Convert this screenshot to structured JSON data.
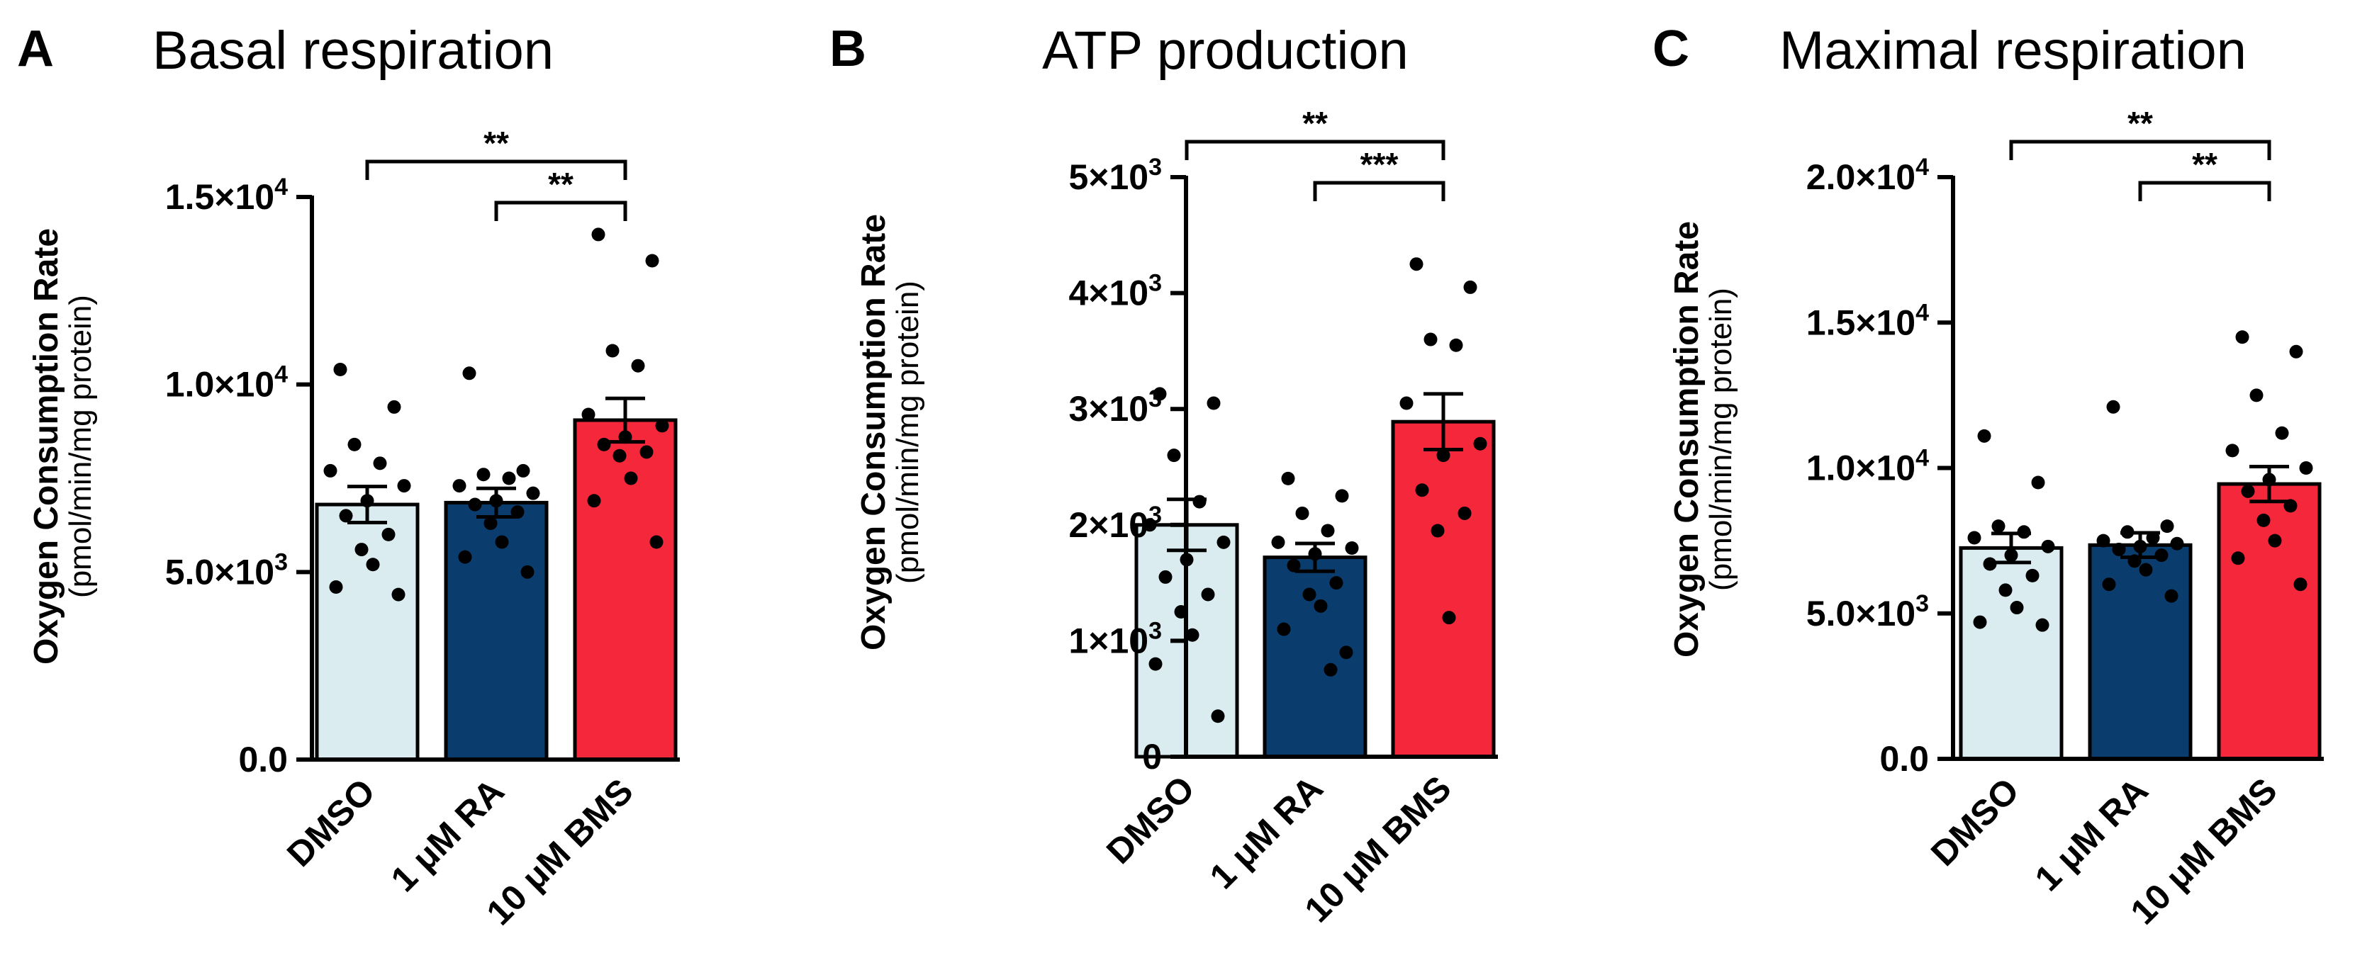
{
  "figure": {
    "panels": [
      {
        "letter": "A",
        "title": "Basal respiration"
      },
      {
        "letter": "B",
        "title": "ATP production"
      },
      {
        "letter": "C",
        "title": "Maximal respiration"
      }
    ]
  },
  "colors": {
    "dmso": "#daecef",
    "ra": "#0a3d6e",
    "bms": "#f5273b",
    "stroke": "#000000"
  },
  "chart_data": [
    {
      "type": "bar",
      "title": "Basal respiration",
      "ylabel": "Oxygen Consumption Rate",
      "ylabel_sub": "(pmol/min/mg protein)",
      "categories": [
        "DMSO",
        "1 μM RA",
        "10 μM BMS"
      ],
      "ylim": [
        0,
        15000
      ],
      "ticks": [
        {
          "value": 0,
          "base": "0.0",
          "exp": ""
        },
        {
          "value": 5000,
          "base": "5.0×10",
          "exp": "3"
        },
        {
          "value": 10000,
          "base": "1.0×10",
          "exp": "4"
        },
        {
          "value": 15000,
          "base": "1.5×10",
          "exp": "4"
        }
      ],
      "series": [
        {
          "name": "DMSO",
          "mean": 6800,
          "sem": 480,
          "points": [
            10400,
            9400,
            8400,
            7900,
            7700,
            7300,
            6900,
            6500,
            6000,
            5600,
            5200,
            4600,
            4400
          ]
        },
        {
          "name": "1 μM RA",
          "mean": 6850,
          "sem": 380,
          "points": [
            10300,
            7700,
            7600,
            7500,
            7300,
            7100,
            6900,
            6800,
            6600,
            6300,
            5800,
            5400,
            5000
          ]
        },
        {
          "name": "10 μM BMS",
          "mean": 9050,
          "sem": 580,
          "points": [
            14000,
            13300,
            10900,
            10500,
            9200,
            8900,
            8600,
            8400,
            8200,
            8100,
            7500,
            6900,
            5800
          ]
        }
      ],
      "significance": [
        {
          "from": 0,
          "to": 2,
          "label": "**"
        },
        {
          "from": 1,
          "to": 2,
          "label": "**"
        }
      ]
    },
    {
      "type": "bar",
      "title": "ATP production",
      "ylabel": "Oxygen Consumption Rate",
      "ylabel_sub": "(pmol/min/mg protein)",
      "categories": [
        "DMSO",
        "1 μM RA",
        "10 μM BMS"
      ],
      "ylim": [
        0,
        5000
      ],
      "ticks": [
        {
          "value": 0,
          "base": "0",
          "exp": ""
        },
        {
          "value": 1000,
          "base": "1×10",
          "exp": "3"
        },
        {
          "value": 2000,
          "base": "2×10",
          "exp": "3"
        },
        {
          "value": 3000,
          "base": "3×10",
          "exp": "3"
        },
        {
          "value": 4000,
          "base": "4×10",
          "exp": "3"
        },
        {
          "value": 5000,
          "base": "5×10",
          "exp": "3"
        }
      ],
      "series": [
        {
          "name": "DMSO",
          "mean": 2000,
          "sem": 220,
          "points": [
            3130,
            3050,
            2600,
            2200,
            2000,
            1850,
            1700,
            1550,
            1400,
            1250,
            1050,
            800,
            350
          ]
        },
        {
          "name": "1 μM RA",
          "mean": 1720,
          "sem": 120,
          "points": [
            2400,
            2250,
            2100,
            1950,
            1850,
            1800,
            1750,
            1650,
            1500,
            1400,
            1300,
            1100,
            900,
            750
          ]
        },
        {
          "name": "10 μM BMS",
          "mean": 2890,
          "sem": 240,
          "points": [
            4250,
            4050,
            3600,
            3550,
            3050,
            2700,
            2600,
            2300,
            2100,
            1950,
            1200
          ]
        }
      ],
      "significance": [
        {
          "from": 0,
          "to": 2,
          "label": "**"
        },
        {
          "from": 1,
          "to": 2,
          "label": "***"
        }
      ]
    },
    {
      "type": "bar",
      "title": "Maximal respiration",
      "ylabel": "Oxygen Consumption Rate",
      "ylabel_sub": "(pmol/min/mg protein)",
      "categories": [
        "DMSO",
        "1 μM RA",
        "10 μM BMS"
      ],
      "ylim": [
        0,
        20000
      ],
      "ticks": [
        {
          "value": 0,
          "base": "0.0",
          "exp": ""
        },
        {
          "value": 5000,
          "base": "5.0×10",
          "exp": "3"
        },
        {
          "value": 10000,
          "base": "1.0×10",
          "exp": "4"
        },
        {
          "value": 15000,
          "base": "1.5×10",
          "exp": "4"
        },
        {
          "value": 20000,
          "base": "2.0×10",
          "exp": "4"
        }
      ],
      "series": [
        {
          "name": "DMSO",
          "mean": 7250,
          "sem": 500,
          "points": [
            11100,
            9500,
            8000,
            7800,
            7600,
            7300,
            7000,
            6700,
            6300,
            5800,
            5200,
            4700,
            4600
          ]
        },
        {
          "name": "1 μM RA",
          "mean": 7350,
          "sem": 420,
          "points": [
            12100,
            8000,
            7800,
            7600,
            7500,
            7400,
            7300,
            7200,
            7000,
            6800,
            6500,
            6000,
            5600
          ]
        },
        {
          "name": "10 μM BMS",
          "mean": 9450,
          "sem": 600,
          "points": [
            14500,
            14000,
            12500,
            11200,
            10600,
            10000,
            9600,
            9200,
            8700,
            8200,
            7500,
            6900,
            6000
          ]
        }
      ],
      "significance": [
        {
          "from": 0,
          "to": 2,
          "label": "**"
        },
        {
          "from": 1,
          "to": 2,
          "label": "**"
        }
      ]
    }
  ]
}
